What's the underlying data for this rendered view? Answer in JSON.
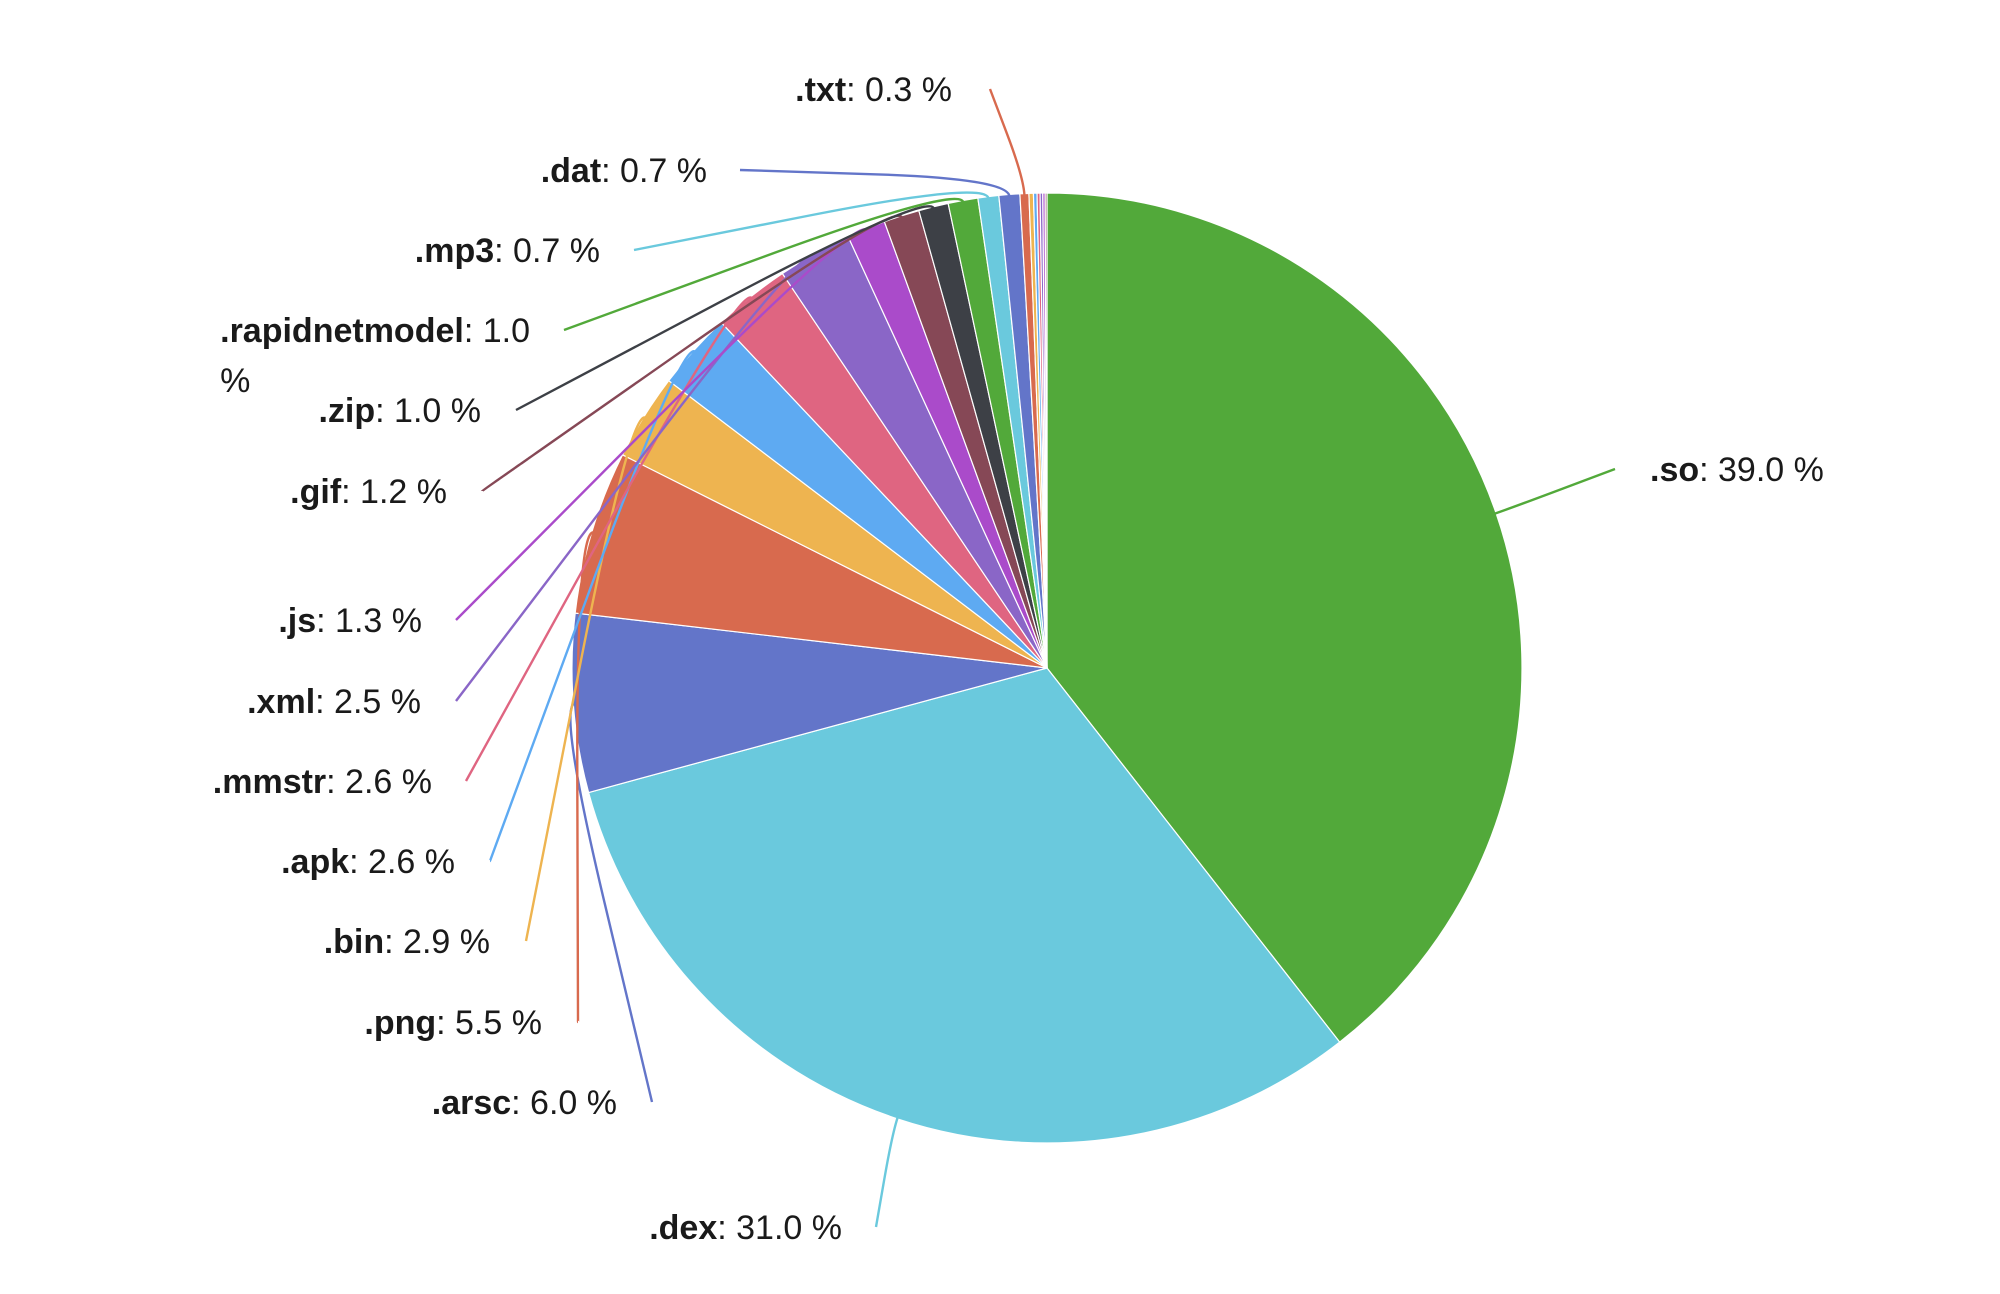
{
  "chart_data": {
    "type": "pie",
    "title": "",
    "value_suffix": " %",
    "slices": [
      {
        "label": ".so",
        "value": 39.0,
        "color": "#52a93a"
      },
      {
        "label": ".dex",
        "value": 31.0,
        "color": "#6ac9dd"
      },
      {
        "label": ".arsc",
        "value": 6.0,
        "color": "#6375c9"
      },
      {
        "label": ".png",
        "value": 5.5,
        "color": "#d86a4e"
      },
      {
        "label": ".bin",
        "value": 2.9,
        "color": "#eeb450"
      },
      {
        "label": ".apk",
        "value": 2.6,
        "color": "#5eaaf2"
      },
      {
        "label": ".mmstr",
        "value": 2.6,
        "color": "#df6581"
      },
      {
        "label": ".xml",
        "value": 2.5,
        "color": "#8a66c7"
      },
      {
        "label": ".js",
        "value": 1.3,
        "color": "#aa4bca"
      },
      {
        "label": ".gif",
        "value": 1.2,
        "color": "#864856"
      },
      {
        "label": ".zip",
        "value": 1.0,
        "color": "#3d4046"
      },
      {
        "label": ".rapidnetmodel",
        "value": 1.0,
        "color": "#52a93a"
      },
      {
        "label": ".mp3",
        "value": 0.7,
        "color": "#6ac9dd"
      },
      {
        "label": ".dat",
        "value": 0.7,
        "color": "#6375c9"
      },
      {
        "label": ".txt",
        "value": 0.3,
        "color": "#d86a4e"
      },
      {
        "label": "",
        "value": 0.15,
        "color": "#eeb450"
      },
      {
        "label": "",
        "value": 0.12,
        "color": "#5eaaf2"
      },
      {
        "label": "",
        "value": 0.1,
        "color": "#df6581"
      },
      {
        "label": "",
        "value": 0.09,
        "color": "#8a66c7"
      },
      {
        "label": "",
        "value": 0.08,
        "color": "#aa4bca"
      },
      {
        "label": "",
        "value": 0.06,
        "color": "#864856"
      }
    ]
  }
}
